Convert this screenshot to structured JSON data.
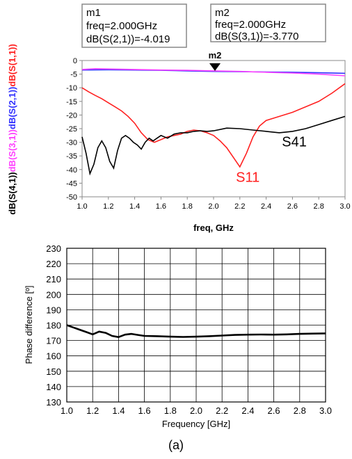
{
  "markers": [
    {
      "name": "m1",
      "freq": "freq=2.000GHz",
      "value": "dB(S(2,1))=-4.019"
    },
    {
      "name": "m2",
      "freq": "freq=2.000GHz",
      "value": "dB(S(3,1))=-3.770"
    }
  ],
  "marker_plot_label": "m2",
  "caption": "(a)",
  "chart_data": [
    {
      "type": "line",
      "xlabel": "freq, GHz",
      "xlim": [
        1.0,
        3.0
      ],
      "ylim": [
        -50,
        0
      ],
      "x_ticks": [
        "1.0",
        "1.2",
        "1.4",
        "1.6",
        "1.8",
        "2.0",
        "2.2",
        "2.4",
        "2.6",
        "2.8",
        "3.0"
      ],
      "y_ticks": [
        "0",
        "-5",
        "-10",
        "-15",
        "-20",
        "-25",
        "-30",
        "-35",
        "-40",
        "-45",
        "-50"
      ],
      "ylabel_parts": [
        {
          "text": "dB(S(4,1))",
          "color": "#000000"
        },
        {
          "text": "dB(S(3,1))",
          "color": "#ff40ff"
        },
        {
          "text": "dB(S(2,1))",
          "color": "#3030ff"
        },
        {
          "text": "dB(S(1,1))",
          "color": "#ff2020"
        }
      ],
      "grid": false,
      "annotations": [
        {
          "text": "S41",
          "x": 2.52,
          "y": -31.5,
          "color": "#000000"
        },
        {
          "text": "S11",
          "x": 2.17,
          "y": -44.5,
          "color": "#ff2020"
        }
      ],
      "series": [
        {
          "name": "dB(S(2,1))",
          "color": "#3030ff",
          "x": [
            1.0,
            1.2,
            1.4,
            1.6,
            1.8,
            2.0,
            2.2,
            2.4,
            2.6,
            2.8,
            3.0
          ],
          "y": [
            -3.5,
            -3.4,
            -3.5,
            -3.6,
            -3.8,
            -4.0,
            -4.1,
            -4.2,
            -4.3,
            -4.5,
            -4.7
          ]
        },
        {
          "name": "dB(S(3,1))",
          "color": "#ff40ff",
          "x": [
            1.0,
            1.1,
            1.2,
            1.4,
            1.6,
            1.8,
            2.0,
            2.2,
            2.4,
            2.6,
            2.8,
            3.0
          ],
          "y": [
            -3.3,
            -3.0,
            -3.1,
            -3.3,
            -3.5,
            -3.6,
            -3.8,
            -4.0,
            -4.3,
            -4.6,
            -5.0,
            -5.6
          ]
        },
        {
          "name": "dB(S(1,1))",
          "color": "#ff2020",
          "x": [
            1.0,
            1.05,
            1.1,
            1.15,
            1.2,
            1.25,
            1.3,
            1.35,
            1.4,
            1.45,
            1.5,
            1.55,
            1.6,
            1.65,
            1.7,
            1.75,
            1.8,
            1.85,
            1.9,
            1.95,
            2.0,
            2.05,
            2.1,
            2.15,
            2.2,
            2.25,
            2.3,
            2.35,
            2.4,
            2.5,
            2.6,
            2.7,
            2.8,
            2.9,
            3.0
          ],
          "y": [
            -10,
            -11.5,
            -12.8,
            -14,
            -15.5,
            -17,
            -18.5,
            -20.5,
            -23,
            -26.5,
            -29,
            -30,
            -29,
            -28,
            -27.5,
            -27,
            -26,
            -25.5,
            -25.8,
            -26.5,
            -27.5,
            -29.5,
            -32,
            -35.5,
            -39,
            -34,
            -28,
            -24,
            -22,
            -20.5,
            -19,
            -17,
            -15,
            -12,
            -8.5
          ]
        },
        {
          "name": "dB(S(4,1))",
          "color": "#000000",
          "x": [
            1.0,
            1.03,
            1.06,
            1.09,
            1.12,
            1.15,
            1.18,
            1.21,
            1.24,
            1.27,
            1.3,
            1.33,
            1.36,
            1.39,
            1.42,
            1.45,
            1.48,
            1.51,
            1.54,
            1.57,
            1.6,
            1.65,
            1.7,
            1.75,
            1.8,
            1.85,
            1.9,
            1.95,
            2.0,
            2.1,
            2.2,
            2.3,
            2.4,
            2.5,
            2.6,
            2.7,
            2.8,
            2.9,
            3.0
          ],
          "y": [
            -28,
            -34,
            -41.5,
            -38,
            -32,
            -29.5,
            -32,
            -37,
            -39.5,
            -33,
            -28.5,
            -27.5,
            -28.5,
            -30,
            -31,
            -32.5,
            -30,
            -28.5,
            -29.5,
            -28.5,
            -27.5,
            -28.5,
            -27,
            -26.5,
            -26.5,
            -26,
            -25.8,
            -26,
            -25.8,
            -24.8,
            -25,
            -25.5,
            -26,
            -26.5,
            -26,
            -25,
            -23.5,
            -22,
            -20.5
          ]
        }
      ]
    },
    {
      "type": "line",
      "xlabel": "Frequency [GHz]",
      "ylabel": "Phase difference [º]",
      "xlim": [
        1.0,
        3.0
      ],
      "ylim": [
        130,
        230
      ],
      "x_ticks": [
        "1.0",
        "1.2",
        "1.4",
        "1.6",
        "1.8",
        "2.0",
        "2.2",
        "2.4",
        "2.6",
        "2.8",
        "3.0"
      ],
      "y_ticks": [
        "230",
        "220",
        "210",
        "200",
        "190",
        "180",
        "170",
        "160",
        "150",
        "140",
        "130"
      ],
      "grid": true,
      "series": [
        {
          "color": "#000000",
          "x": [
            1.0,
            1.05,
            1.1,
            1.15,
            1.2,
            1.25,
            1.3,
            1.35,
            1.4,
            1.45,
            1.5,
            1.55,
            1.6,
            1.7,
            1.8,
            1.9,
            2.0,
            2.1,
            2.2,
            2.3,
            2.4,
            2.5,
            2.6,
            2.7,
            2.8,
            2.9,
            3.0
          ],
          "y": [
            180,
            178.5,
            177,
            175.5,
            174,
            175.8,
            175,
            173,
            172.2,
            173.8,
            174.3,
            173.6,
            173,
            172.8,
            172.5,
            172.3,
            172.5,
            172.8,
            173.2,
            173.6,
            173.8,
            173.9,
            173.8,
            174,
            174.3,
            174.5,
            174.6
          ]
        }
      ]
    }
  ]
}
